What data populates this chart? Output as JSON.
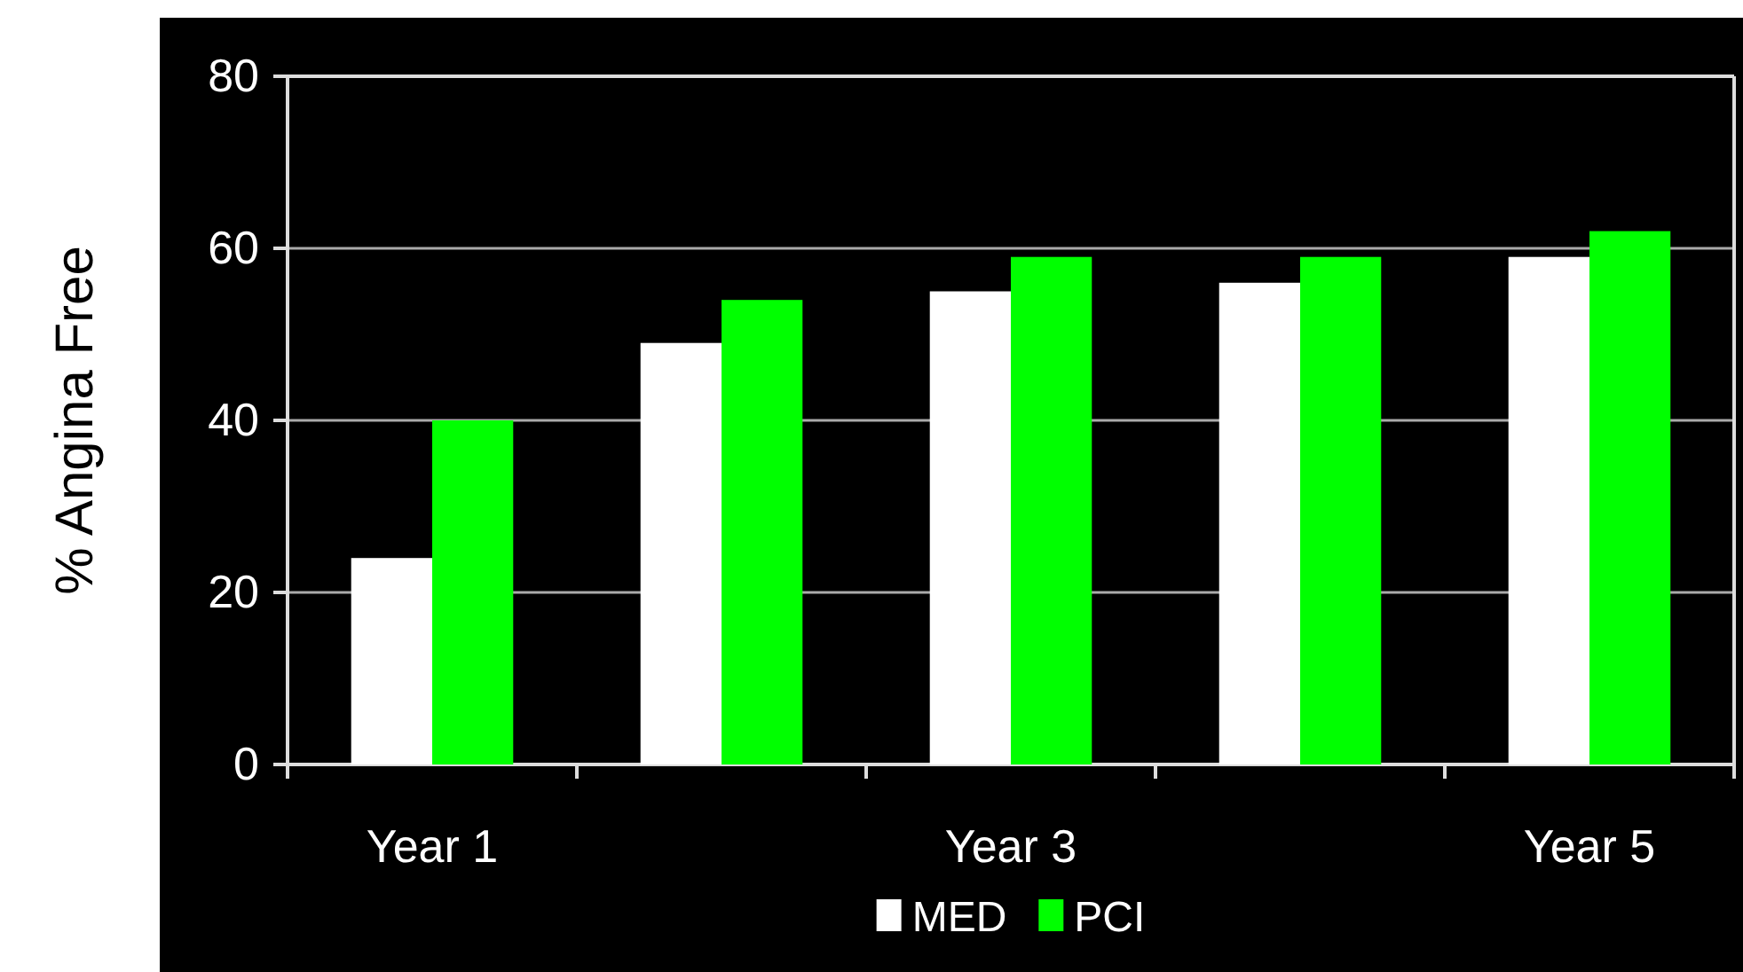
{
  "chart_data": {
    "type": "bar",
    "ylabel": "% Angina Free",
    "categories": [
      "Year 1",
      null,
      "Year 3",
      null,
      "Year 5"
    ],
    "series": [
      {
        "name": "MED",
        "color": "#ffffff",
        "values": [
          24,
          49,
          55,
          56,
          59
        ]
      },
      {
        "name": "PCI",
        "color": "#00ff00",
        "values": [
          40,
          54,
          59,
          59,
          62
        ]
      }
    ],
    "ylim": [
      0,
      80
    ],
    "yticks": [
      0,
      20,
      40,
      60,
      80
    ],
    "grid": "y",
    "legend": "bottom"
  }
}
